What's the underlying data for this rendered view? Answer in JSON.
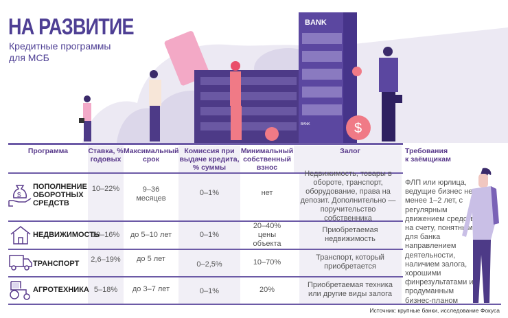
{
  "header": {
    "title": "НА РАЗВИТИЕ",
    "subtitle": "Кредитные программы для МСБ",
    "bank_sign": "BANK",
    "bank_sign_small": "BANK"
  },
  "colors": {
    "accent": "#4e3f94",
    "line": "#6c5aa6",
    "shade": "#f1eff6",
    "pink": "#f07a86"
  },
  "table": {
    "columns": [
      "Программа",
      "Ставка, % годовых",
      "Максимальный срок",
      "Комиссия при выдаче кредита, % суммы",
      "Минимальный собственный взнос",
      "Залог",
      "Требования к заёмщикам"
    ],
    "rows": [
      {
        "icon": "money-bag-hand-icon",
        "program": "ПОПОЛНЕНИЕ ОБОРОТНЫХ СРЕДСТВ",
        "rate": "10–22%",
        "term": "9–36 месяцев",
        "fee": "0–1%",
        "down": "нет",
        "collateral": "Недвижимость, товары в обороте, транспорт, оборудование, права на депозит. Дополнительно — поручительство собственника"
      },
      {
        "icon": "house-icon",
        "program": "НЕДВИЖИМОСТЬ",
        "rate": "10–16%",
        "term": "до 5–10 лет",
        "fee": "0–1%",
        "down": "20–40% цены объекта",
        "collateral": "Приобретаемая недвижимость"
      },
      {
        "icon": "truck-icon",
        "program": "ТРАНСПОРТ",
        "rate": "2,6–19%",
        "term": "до 5 лет",
        "fee": "0–2,5%",
        "down": "10–70%",
        "collateral": "Транспорт, который приобретается"
      },
      {
        "icon": "tractor-icon",
        "program": "АГРОТЕХНИКА",
        "rate": "5–18%",
        "term": "до 3–7 лет",
        "fee": "0–1%",
        "down": "20%",
        "collateral": "Приобретаемая техника или другие виды залога"
      }
    ],
    "requirements": "ФЛП или юрлица, ведущие бизнес не менее 1–2 лет, с регулярным движением средств на счету, понятным для банка направлением деятельности, наличием залога, хорошими финрезультатами и продуманным бизнес-планом"
  },
  "source": "Источник: крупные банки, исследование Фокуса"
}
